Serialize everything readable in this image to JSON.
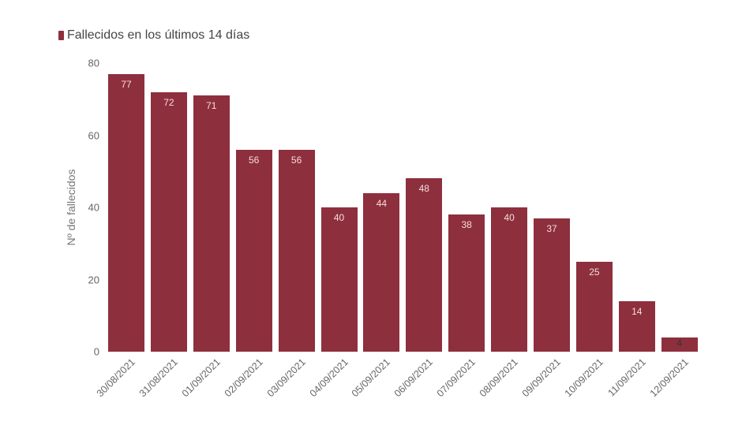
{
  "legend": {
    "label": "Fallecidos en los últimos 14 días",
    "color": "#8e2f3d"
  },
  "chart_data": {
    "type": "bar",
    "title": "",
    "xlabel": "",
    "ylabel": "Nº de fallecidos",
    "ylim": [
      0,
      80
    ],
    "yticks": [
      "0",
      "20",
      "40",
      "60",
      "80"
    ],
    "grid": false,
    "legend_position": "top-left",
    "categories": [
      "30/08/2021",
      "31/08/2021",
      "01/09/2021",
      "02/09/2021",
      "03/09/2021",
      "04/09/2021",
      "05/09/2021",
      "06/09/2021",
      "07/09/2021",
      "08/09/2021",
      "09/09/2021",
      "10/09/2021",
      "11/09/2021",
      "12/09/2021"
    ],
    "series": [
      {
        "name": "Fallecidos en los últimos 14 días",
        "color": "#8e2f3d",
        "values": [
          77,
          72,
          71,
          56,
          56,
          40,
          44,
          48,
          38,
          40,
          37,
          25,
          14,
          4
        ]
      }
    ]
  }
}
